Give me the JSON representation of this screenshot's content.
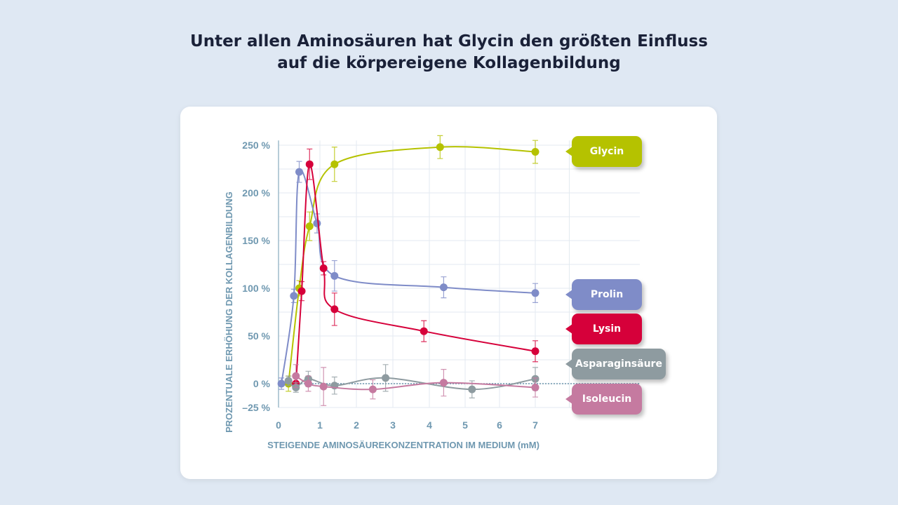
{
  "title_lines": [
    "Unter allen Aminosäuren hat Glycin den größten Einfluss",
    "auf die körpereigene Kollagenbildung"
  ],
  "chart_data": {
    "type": "line",
    "title": "Unter allen Aminosäuren hat Glycin den größten Einfluss auf die körpereigene Kollagenbildung",
    "xlabel": "STEIGENDE AMINOSÄUREKONZENTRATION IM MEDIUM (mM)",
    "ylabel": "PROZENTUALE ERHÖHUNG DER KOLLAGENBILDUNG",
    "x_ticks": [
      "0",
      "1",
      "2",
      "3",
      "4",
      "5",
      "6",
      "7"
    ],
    "y_ticks": [
      {
        "v": 250,
        "label": "250 %"
      },
      {
        "v": 200,
        "label": "200 %"
      },
      {
        "v": 150,
        "label": "150 %"
      },
      {
        "v": 100,
        "label": "100 %"
      },
      {
        "v": 50,
        "label": "50 %"
      },
      {
        "v": 0,
        "label": "0 %"
      },
      {
        "v": -25,
        "label": "–25 %"
      }
    ],
    "xlim": [
      0,
      7.9
    ],
    "ylim": [
      -25,
      255
    ],
    "grid": true,
    "series": [
      {
        "name": "Glycin",
        "color": "#b5c200",
        "x": [
          0.24,
          0.5,
          0.75,
          1.4,
          4.3,
          7
        ],
        "y": [
          0,
          100,
          165,
          230,
          248,
          243
        ],
        "err": [
          8,
          8,
          15,
          18,
          12,
          12
        ]
      },
      {
        "name": "Prolin",
        "color": "#7f8cc8",
        "x": [
          0.07,
          0.37,
          0.5,
          0.93,
          1.4,
          4.4,
          7
        ],
        "y": [
          0,
          92,
          222,
          168,
          113,
          101,
          95
        ],
        "err": [
          6,
          7,
          11,
          10,
          16,
          11,
          10
        ]
      },
      {
        "name": "Lysin",
        "color": "#d6003a",
        "x": [
          0.42,
          0.56,
          0.75,
          1.1,
          1.4,
          3.85,
          7
        ],
        "y": [
          0,
          97,
          230,
          121,
          78,
          55,
          34
        ],
        "err": [
          6,
          10,
          16,
          7,
          17,
          11,
          11
        ]
      },
      {
        "name": "Asparaginsäure",
        "color": "#8e9ba0",
        "x": [
          0.24,
          0.42,
          0.72,
          1.4,
          2.8,
          5.2,
          7
        ],
        "y": [
          3,
          -4,
          5,
          -2,
          6,
          -6,
          5
        ],
        "err": [
          5,
          5,
          8,
          9,
          14,
          9,
          12
        ]
      },
      {
        "name": "Isoleucin",
        "color": "#c57aa0",
        "x": [
          0.42,
          0.72,
          1.1,
          2.45,
          4.4,
          7
        ],
        "y": [
          8,
          0,
          -3,
          -6,
          1,
          -4
        ],
        "err": [
          12,
          8,
          20,
          10,
          14,
          10
        ]
      }
    ]
  }
}
